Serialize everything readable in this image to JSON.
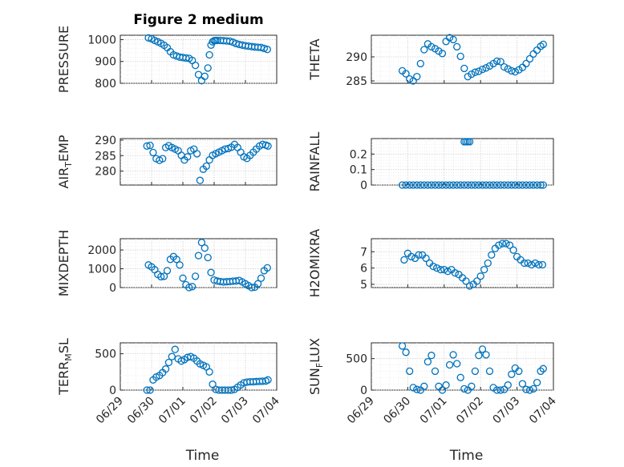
{
  "figure": {
    "title": "Figure 2 medium",
    "xlabel": "Time",
    "marker_color": "#0072BD",
    "x_ticks": [
      "06/29",
      "06/30",
      "07/01",
      "07/02",
      "07/03",
      "07/04"
    ]
  },
  "chart_data": [
    {
      "type": "scatter",
      "ylabel": "PRESSURE",
      "ylim": [
        800,
        1020
      ],
      "yticks": [
        800,
        900,
        1000
      ],
      "grid": true,
      "x": [
        0.9,
        1.0,
        1.1,
        1.2,
        1.3,
        1.4,
        1.5,
        1.6,
        1.7,
        1.8,
        1.9,
        2.0,
        2.1,
        2.2,
        2.3,
        2.4,
        2.5,
        2.6,
        2.7,
        2.8,
        2.85,
        2.9,
        2.95,
        3.0,
        3.05,
        3.1,
        3.2,
        3.3,
        3.4,
        3.5,
        3.6,
        3.7,
        3.8,
        3.9,
        4.0,
        4.1,
        4.2,
        4.3,
        4.4,
        4.5,
        4.6,
        4.7
      ],
      "y": [
        1008,
        1004,
        996,
        990,
        983,
        974,
        963,
        945,
        930,
        925,
        920,
        918,
        916,
        914,
        905,
        882,
        840,
        812,
        832,
        870,
        930,
        975,
        990,
        995,
        996,
        996,
        996,
        995,
        994,
        993,
        988,
        982,
        978,
        975,
        972,
        970,
        968,
        966,
        965,
        964,
        960,
        955
      ]
    },
    {
      "type": "scatter",
      "ylabel": "THETA",
      "ylim": [
        284.5,
        294.5
      ],
      "yticks": [
        285,
        290
      ],
      "grid": true,
      "x": [
        0.85,
        0.95,
        1.05,
        1.15,
        1.25,
        1.35,
        1.45,
        1.55,
        1.65,
        1.75,
        1.85,
        1.95,
        2.05,
        2.15,
        2.25,
        2.35,
        2.45,
        2.55,
        2.65,
        2.75,
        2.85,
        2.95,
        3.05,
        3.15,
        3.25,
        3.35,
        3.45,
        3.55,
        3.65,
        3.75,
        3.85,
        3.95,
        4.05,
        4.15,
        4.25,
        4.35,
        4.45,
        4.55,
        4.65,
        4.72
      ],
      "y": [
        287.1,
        286.5,
        285.4,
        285.0,
        285.9,
        288.6,
        291.5,
        292.7,
        292.1,
        291.7,
        291.2,
        290.7,
        293.2,
        294.0,
        293.6,
        292.1,
        290.1,
        287.6,
        285.9,
        286.4,
        286.8,
        287.0,
        287.4,
        287.7,
        288.1,
        288.6,
        289.1,
        289.0,
        287.9,
        287.5,
        287.1,
        286.9,
        287.3,
        287.8,
        288.6,
        289.6,
        290.6,
        291.4,
        292.2,
        292.6
      ]
    },
    {
      "type": "scatter",
      "ylabel": "AIR_TEMP",
      "ylim": [
        275.5,
        290.5
      ],
      "yticks": [
        280,
        285,
        290
      ],
      "grid": true,
      "x": [
        0.85,
        0.95,
        1.05,
        1.15,
        1.25,
        1.35,
        1.45,
        1.55,
        1.65,
        1.75,
        1.85,
        1.95,
        2.05,
        2.15,
        2.25,
        2.35,
        2.45,
        2.55,
        2.65,
        2.75,
        2.85,
        2.95,
        3.05,
        3.15,
        3.25,
        3.35,
        3.45,
        3.55,
        3.65,
        3.75,
        3.85,
        3.95,
        4.05,
        4.15,
        4.25,
        4.35,
        4.45,
        4.55,
        4.65,
        4.72
      ],
      "y": [
        288.1,
        288.3,
        286.0,
        284.0,
        283.5,
        284.0,
        287.6,
        288.2,
        287.6,
        287.1,
        286.6,
        285.1,
        283.6,
        284.6,
        286.6,
        287.1,
        285.6,
        277.0,
        280.6,
        281.6,
        283.6,
        285.1,
        285.6,
        286.1,
        286.6,
        287.1,
        287.3,
        287.7,
        288.6,
        287.6,
        286.1,
        284.6,
        284.1,
        285.1,
        286.1,
        287.1,
        288.1,
        288.6,
        288.4,
        288.1
      ]
    },
    {
      "type": "scatter",
      "ylabel": "RAINFALL",
      "ylim": [
        0,
        0.3
      ],
      "yticks": [
        0,
        0.1,
        0.2
      ],
      "grid": true,
      "x": [
        0.85,
        0.95,
        1.05,
        1.15,
        1.25,
        1.35,
        1.45,
        1.55,
        1.65,
        1.75,
        1.85,
        1.95,
        2.05,
        2.15,
        2.25,
        2.35,
        2.45,
        2.55,
        2.65,
        2.75,
        2.85,
        2.95,
        3.05,
        3.15,
        3.25,
        3.35,
        3.45,
        3.55,
        3.65,
        3.75,
        3.85,
        3.95,
        4.05,
        4.15,
        4.25,
        4.35,
        4.45,
        4.55,
        4.65,
        4.72,
        2.55,
        2.6,
        2.65,
        2.7
      ],
      "y": [
        0,
        0,
        0,
        0,
        0,
        0,
        0,
        0,
        0,
        0,
        0,
        0,
        0,
        0,
        0,
        0,
        0,
        0,
        0,
        0,
        0,
        0,
        0,
        0,
        0,
        0,
        0,
        0,
        0,
        0,
        0,
        0,
        0,
        0,
        0,
        0,
        0,
        0,
        0,
        0,
        0.28,
        0.28,
        0.28,
        0.28
      ]
    },
    {
      "type": "scatter",
      "ylabel": "MIXDEPTH",
      "ylim": [
        0,
        2600
      ],
      "yticks": [
        0,
        1000,
        2000
      ],
      "grid": true,
      "x": [
        0.9,
        1.0,
        1.1,
        1.2,
        1.3,
        1.4,
        1.5,
        1.6,
        1.7,
        1.8,
        1.9,
        2.0,
        2.1,
        2.2,
        2.3,
        2.4,
        2.5,
        2.6,
        2.7,
        2.8,
        2.9,
        3.0,
        3.1,
        3.2,
        3.3,
        3.4,
        3.5,
        3.6,
        3.7,
        3.8,
        3.9,
        4.0,
        4.1,
        4.2,
        4.3,
        4.4,
        4.5,
        4.6,
        4.7
      ],
      "y": [
        1200,
        1100,
        950,
        700,
        580,
        600,
        900,
        1500,
        1650,
        1500,
        1200,
        500,
        150,
        0,
        50,
        600,
        1700,
        2400,
        2100,
        1600,
        800,
        400,
        350,
        320,
        300,
        310,
        320,
        340,
        350,
        380,
        300,
        200,
        100,
        0,
        20,
        200,
        500,
        900,
        1050
      ]
    },
    {
      "type": "scatter",
      "ylabel": "H2OMIXRA",
      "ylim": [
        4.8,
        7.8
      ],
      "yticks": [
        5,
        6,
        7
      ],
      "grid": true,
      "x": [
        0.9,
        1.0,
        1.1,
        1.2,
        1.3,
        1.4,
        1.5,
        1.6,
        1.7,
        1.8,
        1.9,
        2.0,
        2.1,
        2.2,
        2.3,
        2.4,
        2.5,
        2.6,
        2.7,
        2.8,
        2.9,
        3.0,
        3.1,
        3.2,
        3.3,
        3.4,
        3.5,
        3.6,
        3.7,
        3.8,
        3.9,
        4.0,
        4.1,
        4.2,
        4.3,
        4.4,
        4.5,
        4.6,
        4.7
      ],
      "y": [
        6.5,
        6.9,
        6.7,
        6.6,
        6.8,
        6.8,
        6.6,
        6.3,
        6.1,
        6.0,
        5.9,
        5.9,
        5.8,
        5.9,
        5.7,
        5.6,
        5.4,
        5.2,
        4.9,
        5.0,
        5.2,
        5.5,
        5.9,
        6.3,
        6.8,
        7.2,
        7.4,
        7.5,
        7.5,
        7.4,
        7.1,
        6.7,
        6.5,
        6.3,
        6.3,
        6.2,
        6.3,
        6.2,
        6.2
      ]
    },
    {
      "type": "scatter",
      "ylabel": "TERR_MSL",
      "ylim": [
        0,
        650
      ],
      "yticks": [
        0,
        500
      ],
      "grid": true,
      "x": [
        0.85,
        0.95,
        1.05,
        1.15,
        1.25,
        1.35,
        1.45,
        1.55,
        1.65,
        1.75,
        1.85,
        1.95,
        2.05,
        2.15,
        2.25,
        2.35,
        2.45,
        2.55,
        2.65,
        2.75,
        2.85,
        2.95,
        3.05,
        3.15,
        3.25,
        3.35,
        3.45,
        3.55,
        3.65,
        3.75,
        3.85,
        3.95,
        4.05,
        4.15,
        4.25,
        4.35,
        4.45,
        4.55,
        4.65,
        4.72
      ],
      "y": [
        0,
        0,
        140,
        180,
        200,
        240,
        290,
        380,
        460,
        560,
        430,
        400,
        420,
        450,
        460,
        440,
        400,
        360,
        340,
        320,
        250,
        80,
        10,
        0,
        0,
        0,
        0,
        0,
        10,
        40,
        70,
        100,
        110,
        115,
        115,
        118,
        120,
        122,
        125,
        140
      ]
    },
    {
      "type": "scatter",
      "ylabel": "SUN_FLUX",
      "ylim": [
        0,
        750
      ],
      "yticks": [
        0,
        500
      ],
      "grid": true,
      "x": [
        0.85,
        0.95,
        1.05,
        1.15,
        1.25,
        1.35,
        1.45,
        1.55,
        1.65,
        1.75,
        1.85,
        1.95,
        2.05,
        2.15,
        2.25,
        2.35,
        2.45,
        2.55,
        2.65,
        2.75,
        2.85,
        2.95,
        3.05,
        3.15,
        3.25,
        3.35,
        3.45,
        3.55,
        3.65,
        3.75,
        3.85,
        3.95,
        4.05,
        4.15,
        4.25,
        4.35,
        4.45,
        4.55,
        4.65,
        4.72
      ],
      "y": [
        700,
        600,
        300,
        40,
        10,
        0,
        60,
        450,
        550,
        300,
        60,
        0,
        80,
        400,
        560,
        420,
        200,
        20,
        0,
        60,
        300,
        550,
        650,
        560,
        300,
        40,
        0,
        0,
        10,
        80,
        250,
        350,
        300,
        100,
        10,
        0,
        20,
        120,
        300,
        340
      ]
    }
  ]
}
